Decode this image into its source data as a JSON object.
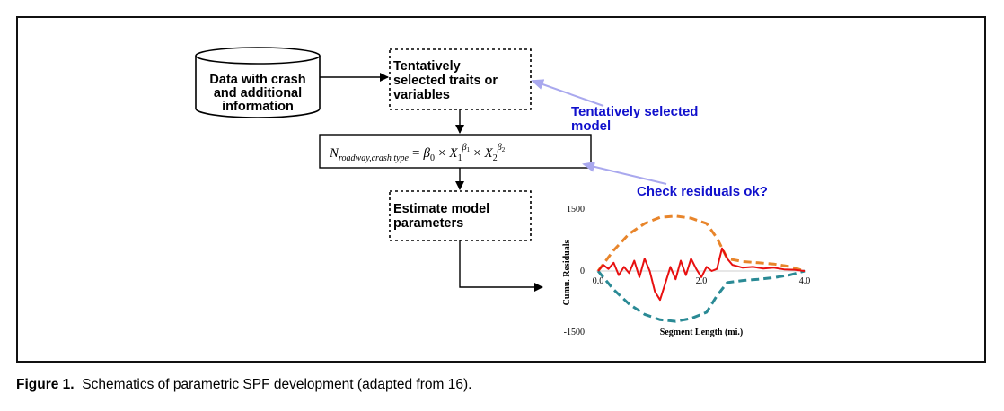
{
  "diagram": {
    "data_node": {
      "lines": [
        "Data with crash",
        "and additional",
        "information"
      ]
    },
    "traits_node": {
      "lines": [
        "Tentatively",
        "selected traits or",
        "variables"
      ]
    },
    "estimate_node": {
      "lines": [
        "Estimate model",
        "parameters"
      ]
    },
    "formula": {
      "lhs": "N",
      "lhs_sub": "roadway,crash type",
      "eq": "=",
      "b0": "β",
      "b0_sub": "0",
      "times": "×",
      "x1": "X",
      "x1_sub": "1",
      "x1_sup": "β",
      "x1_sup_sub": "1",
      "x2": "X",
      "x2_sub": "2",
      "x2_sup": "β",
      "x2_sup_sub": "2"
    },
    "note_model": {
      "lines": [
        "Tentatively selected",
        "model"
      ],
      "color": "#1010cc"
    },
    "note_residuals": {
      "text": "Check residuals ok?",
      "color": "#1010cc"
    },
    "arrow_note_color": "#a9a8ee"
  },
  "chart_data": {
    "type": "line",
    "ylabel": "Cumu. Residuals",
    "xlabel": "Segment Length (mi.)",
    "xlim": [
      0,
      4.0
    ],
    "ylim": [
      -1500,
      1500
    ],
    "x_ticks": [
      "0.0",
      "2.0",
      "4.0"
    ],
    "y_ticks": [
      "1500",
      "0",
      "-1500"
    ],
    "series": [
      {
        "style": "dashed",
        "color": "#e8852b",
        "x": [
          0.0,
          0.3,
          0.6,
          0.9,
          1.2,
          1.5,
          1.8,
          2.1,
          2.3,
          2.5,
          2.8,
          3.1,
          3.4,
          3.7,
          4.0
        ],
        "y": [
          0,
          500,
          900,
          1150,
          1300,
          1330,
          1280,
          1150,
          800,
          300,
          230,
          200,
          170,
          110,
          0
        ]
      },
      {
        "style": "dashed",
        "color": "#2a8a95",
        "x": [
          0.0,
          0.3,
          0.6,
          0.9,
          1.2,
          1.5,
          1.8,
          2.1,
          2.3,
          2.5,
          2.8,
          3.1,
          3.4,
          3.7,
          4.0
        ],
        "y": [
          0,
          -450,
          -800,
          -1050,
          -1180,
          -1220,
          -1150,
          -1000,
          -600,
          -280,
          -230,
          -200,
          -160,
          -100,
          0
        ]
      },
      {
        "style": "solid",
        "color": "#e81010",
        "x": [
          0.0,
          0.1,
          0.2,
          0.3,
          0.4,
          0.5,
          0.6,
          0.7,
          0.8,
          0.9,
          1.0,
          1.1,
          1.2,
          1.3,
          1.4,
          1.5,
          1.6,
          1.7,
          1.8,
          1.9,
          2.0,
          2.1,
          2.2,
          2.3,
          2.4,
          2.5,
          2.6,
          2.8,
          3.0,
          3.2,
          3.4,
          3.6,
          3.8,
          4.0
        ],
        "y": [
          0,
          150,
          50,
          200,
          -100,
          100,
          -50,
          250,
          -150,
          300,
          0,
          -500,
          -700,
          -300,
          100,
          -200,
          250,
          -100,
          300,
          50,
          -150,
          100,
          0,
          50,
          550,
          300,
          150,
          80,
          100,
          60,
          80,
          40,
          30,
          0
        ]
      }
    ]
  },
  "caption": {
    "label": "Figure 1.",
    "text": "Schematics of parametric SPF development (adapted from 16)."
  }
}
